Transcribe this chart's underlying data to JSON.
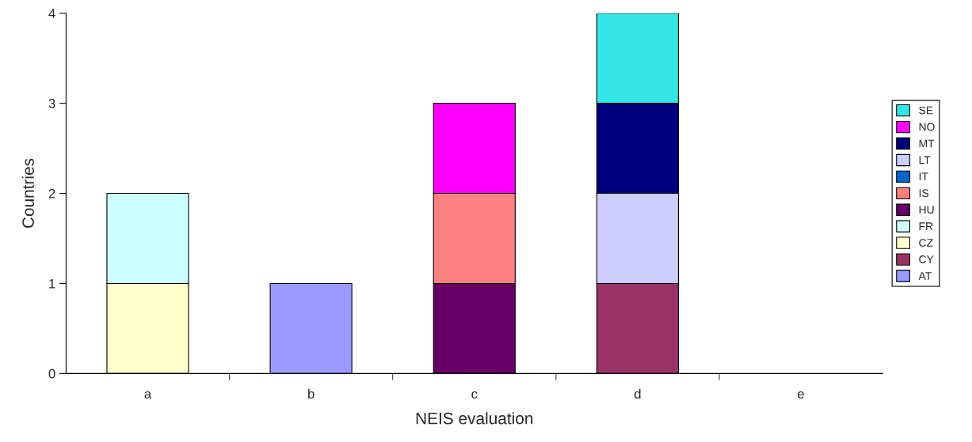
{
  "chart_data": {
    "type": "bar",
    "stacked": true,
    "xlabel": "NEIS evaluation",
    "ylabel": "Countries",
    "categories": [
      "a",
      "b",
      "c",
      "d",
      "e"
    ],
    "ylim": [
      0,
      4
    ],
    "yticks": [
      0,
      1,
      2,
      3,
      4
    ],
    "grid": false,
    "legend": "right",
    "series": [
      {
        "name": "AT",
        "color": "#9999ff",
        "values": [
          null,
          1,
          null,
          null,
          null
        ]
      },
      {
        "name": "CY",
        "color": "#993366",
        "values": [
          null,
          null,
          null,
          1,
          null
        ]
      },
      {
        "name": "CZ",
        "color": "#ffffcc",
        "values": [
          1,
          null,
          null,
          null,
          null
        ]
      },
      {
        "name": "FR",
        "color": "#ccffff",
        "values": [
          1,
          null,
          null,
          null,
          null
        ]
      },
      {
        "name": "HU",
        "color": "#660066",
        "values": [
          null,
          null,
          1,
          null,
          null
        ]
      },
      {
        "name": "IS",
        "color": "#ff8080",
        "values": [
          null,
          null,
          1,
          null,
          null
        ]
      },
      {
        "name": "IT",
        "color": "#0066cc",
        "values": [
          null,
          null,
          null,
          null,
          null
        ]
      },
      {
        "name": "LT",
        "color": "#ccccff",
        "values": [
          null,
          null,
          null,
          1,
          null
        ]
      },
      {
        "name": "MT",
        "color": "#000080",
        "values": [
          null,
          null,
          null,
          1,
          null
        ]
      },
      {
        "name": "NO",
        "color": "#ff00ff",
        "values": [
          null,
          null,
          1,
          null,
          null
        ]
      },
      {
        "name": "SE",
        "color": "#33e5e5",
        "values": [
          null,
          null,
          null,
          1,
          null
        ]
      }
    ]
  }
}
